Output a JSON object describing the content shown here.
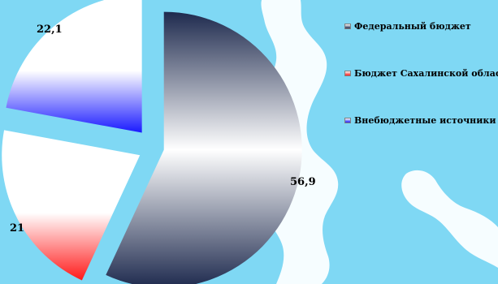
{
  "chart_data": {
    "type": "pie",
    "exploded": true,
    "categories": [
      "Федеральный бюджет",
      "Бюджет Сахалинской области",
      "Внебюджетные источники"
    ],
    "values": [
      56.9,
      21,
      22.1
    ],
    "labels": [
      "56,9",
      "21",
      "22,1"
    ],
    "colors": [
      "#1e2a4e",
      "#ff1a1a",
      "#1a1aff"
    ],
    "legend": "right",
    "title": ""
  },
  "legend": {
    "items": [
      {
        "label": "Федеральный бюджет",
        "color": "#1e2a4e"
      },
      {
        "label": "Бюджет Сахалинской области",
        "color": "#ff1a1a"
      },
      {
        "label": "Внебюджетные источники",
        "color": "#1a1aff"
      }
    ]
  }
}
